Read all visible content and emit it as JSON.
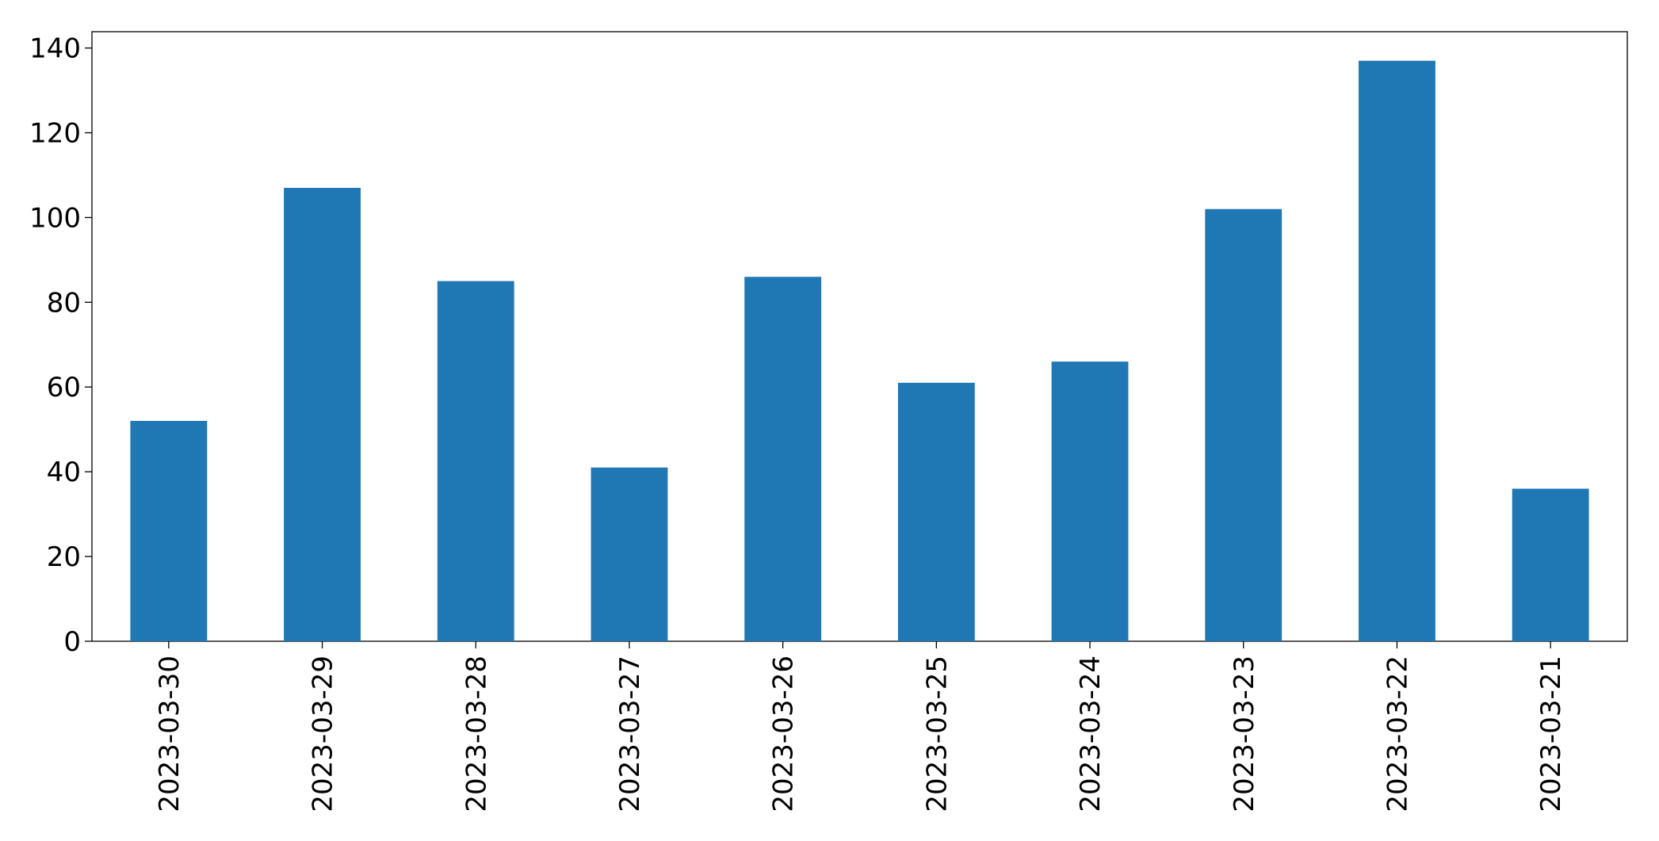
{
  "chart_data": {
    "type": "bar",
    "categories": [
      "2023-03-30",
      "2023-03-29",
      "2023-03-28",
      "2023-03-27",
      "2023-03-26",
      "2023-03-25",
      "2023-03-24",
      "2023-03-23",
      "2023-03-22",
      "2023-03-21"
    ],
    "values": [
      52,
      107,
      85,
      41,
      86,
      61,
      66,
      102,
      137,
      36
    ],
    "color": "#1f77b4",
    "ylim": [
      0,
      143.85
    ],
    "yticks": [
      0,
      20,
      40,
      60,
      80,
      100,
      120,
      140
    ],
    "grid": false
  }
}
